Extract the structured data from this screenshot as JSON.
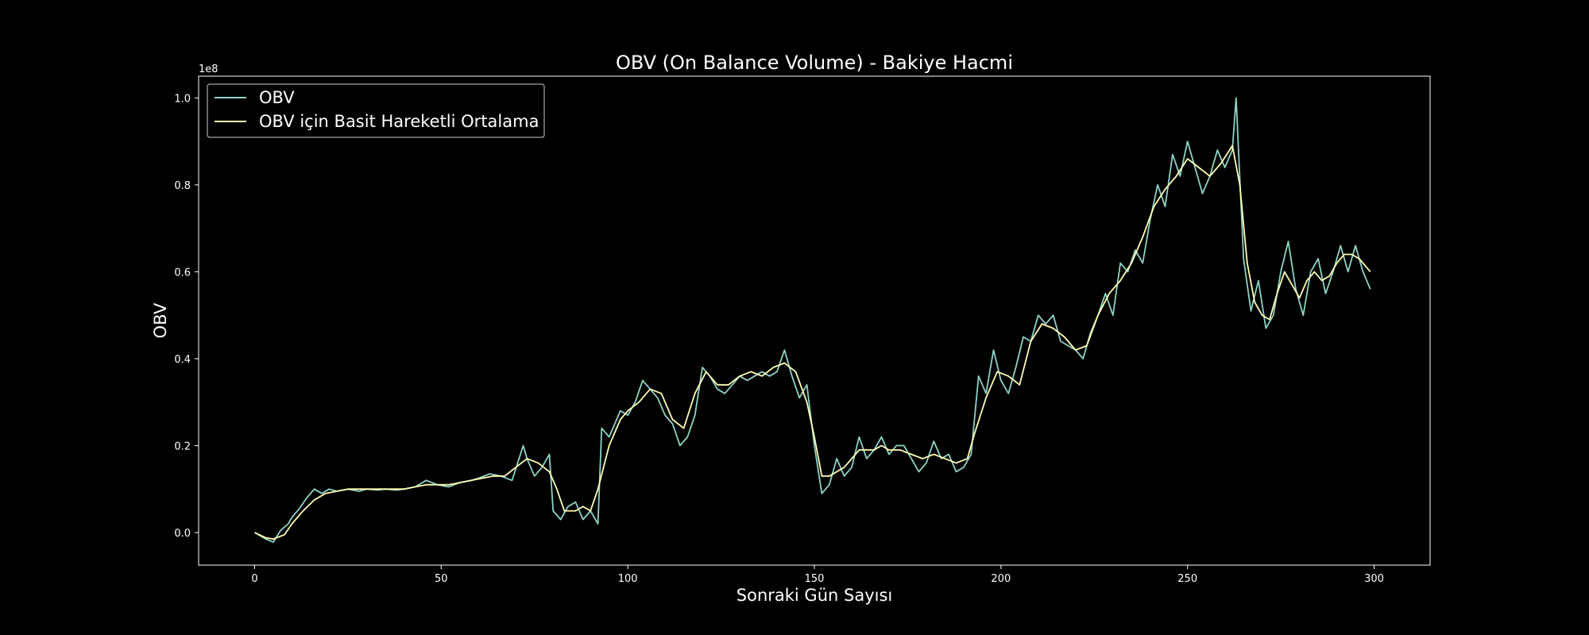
{
  "chart_data": {
    "type": "line",
    "title": "OBV (On Balance Volume) - Bakiye Hacmi",
    "xlabel": "Sonraki Gün Sayısı",
    "ylabel": "OBV",
    "y_scale_label": "1e8",
    "xlim": [
      -15,
      315
    ],
    "ylim": [
      -0.075,
      1.05
    ],
    "x_ticks": [
      0,
      50,
      100,
      150,
      200,
      250,
      300
    ],
    "x_tick_labels": [
      "0",
      "50",
      "100",
      "150",
      "200",
      "250",
      "300"
    ],
    "y_ticks": [
      0.0,
      0.2,
      0.4,
      0.6,
      0.8,
      1.0
    ],
    "y_tick_labels": [
      "0.0",
      "0.2",
      "0.4",
      "0.6",
      "0.8",
      "1.0"
    ],
    "grid": false,
    "legend_position": "top-left",
    "series": [
      {
        "name": "OBV",
        "color": "#8dd3c7",
        "x": [
          0,
          3,
          5,
          7,
          9,
          10,
          12,
          14,
          16,
          18,
          20,
          22,
          25,
          28,
          30,
          33,
          35,
          38,
          40,
          43,
          46,
          49,
          52,
          55,
          58,
          60,
          63,
          66,
          69,
          72,
          73,
          75,
          77,
          79,
          80,
          82,
          84,
          86,
          88,
          90,
          92,
          93,
          95,
          98,
          100,
          102,
          104,
          106,
          108,
          110,
          112,
          114,
          116,
          118,
          120,
          122,
          124,
          126,
          128,
          130,
          132,
          134,
          136,
          138,
          140,
          142,
          144,
          146,
          148,
          150,
          152,
          154,
          156,
          158,
          160,
          162,
          164,
          166,
          168,
          170,
          172,
          174,
          176,
          178,
          180,
          182,
          184,
          186,
          188,
          190,
          192,
          194,
          196,
          198,
          200,
          202,
          204,
          206,
          208,
          210,
          212,
          214,
          216,
          218,
          220,
          222,
          224,
          226,
          228,
          230,
          232,
          234,
          236,
          238,
          240,
          242,
          244,
          246,
          248,
          250,
          252,
          254,
          256,
          258,
          260,
          262,
          263,
          265,
          267,
          269,
          271,
          273,
          275,
          277,
          279,
          281,
          283,
          285,
          287,
          289,
          291,
          293,
          295,
          297,
          299
        ],
        "values": [
          0.0,
          -0.015,
          -0.022,
          0.005,
          0.02,
          0.035,
          0.055,
          0.08,
          0.1,
          0.09,
          0.1,
          0.095,
          0.1,
          0.095,
          0.1,
          0.098,
          0.1,
          0.098,
          0.1,
          0.105,
          0.12,
          0.11,
          0.105,
          0.115,
          0.12,
          0.125,
          0.135,
          0.13,
          0.12,
          0.2,
          0.17,
          0.13,
          0.15,
          0.18,
          0.05,
          0.03,
          0.06,
          0.07,
          0.03,
          0.05,
          0.02,
          0.24,
          0.22,
          0.28,
          0.27,
          0.3,
          0.35,
          0.33,
          0.31,
          0.27,
          0.25,
          0.2,
          0.22,
          0.27,
          0.38,
          0.36,
          0.33,
          0.32,
          0.34,
          0.36,
          0.35,
          0.36,
          0.37,
          0.36,
          0.37,
          0.42,
          0.36,
          0.31,
          0.34,
          0.2,
          0.09,
          0.11,
          0.17,
          0.13,
          0.15,
          0.22,
          0.17,
          0.19,
          0.22,
          0.18,
          0.2,
          0.2,
          0.17,
          0.14,
          0.16,
          0.21,
          0.17,
          0.18,
          0.14,
          0.15,
          0.18,
          0.36,
          0.32,
          0.42,
          0.35,
          0.32,
          0.38,
          0.45,
          0.44,
          0.5,
          0.48,
          0.5,
          0.44,
          0.43,
          0.42,
          0.4,
          0.46,
          0.5,
          0.55,
          0.5,
          0.62,
          0.6,
          0.65,
          0.62,
          0.72,
          0.8,
          0.75,
          0.87,
          0.82,
          0.9,
          0.84,
          0.78,
          0.82,
          0.88,
          0.84,
          0.88,
          1.0,
          0.63,
          0.51,
          0.58,
          0.47,
          0.5,
          0.6,
          0.67,
          0.56,
          0.5,
          0.6,
          0.63,
          0.55,
          0.6,
          0.66,
          0.6,
          0.66,
          0.6,
          0.56
        ]
      },
      {
        "name": "OBV için Basit Hareketli Ortalama",
        "color": "#ffffb3",
        "x": [
          0,
          3,
          5,
          8,
          10,
          13,
          16,
          19,
          22,
          25,
          28,
          31,
          34,
          37,
          40,
          43,
          46,
          49,
          52,
          55,
          58,
          61,
          64,
          67,
          70,
          73,
          76,
          79,
          81,
          83,
          86,
          88,
          90,
          92,
          95,
          98,
          100,
          103,
          106,
          109,
          112,
          115,
          118,
          121,
          124,
          127,
          130,
          133,
          136,
          139,
          142,
          145,
          148,
          150,
          152,
          154,
          156,
          158,
          160,
          162,
          164,
          166,
          168,
          170,
          173,
          176,
          179,
          182,
          185,
          188,
          191,
          193,
          196,
          199,
          202,
          205,
          208,
          211,
          214,
          217,
          220,
          223,
          226,
          229,
          232,
          235,
          238,
          241,
          244,
          247,
          250,
          253,
          256,
          259,
          262,
          264,
          266,
          268,
          270,
          272,
          274,
          276,
          278,
          280,
          282,
          284,
          286,
          288,
          290,
          292,
          294,
          296,
          299
        ],
        "values": [
          0.0,
          -0.012,
          -0.015,
          -0.005,
          0.02,
          0.05,
          0.075,
          0.09,
          0.095,
          0.1,
          0.1,
          0.1,
          0.1,
          0.1,
          0.1,
          0.105,
          0.11,
          0.11,
          0.11,
          0.115,
          0.12,
          0.125,
          0.13,
          0.13,
          0.15,
          0.17,
          0.16,
          0.14,
          0.1,
          0.05,
          0.05,
          0.06,
          0.05,
          0.1,
          0.2,
          0.26,
          0.28,
          0.3,
          0.33,
          0.32,
          0.26,
          0.24,
          0.32,
          0.37,
          0.34,
          0.34,
          0.36,
          0.37,
          0.36,
          0.38,
          0.39,
          0.37,
          0.3,
          0.22,
          0.13,
          0.13,
          0.14,
          0.15,
          0.17,
          0.19,
          0.19,
          0.19,
          0.2,
          0.19,
          0.19,
          0.18,
          0.17,
          0.18,
          0.17,
          0.16,
          0.17,
          0.23,
          0.31,
          0.37,
          0.36,
          0.34,
          0.44,
          0.48,
          0.47,
          0.45,
          0.42,
          0.43,
          0.5,
          0.55,
          0.58,
          0.62,
          0.68,
          0.75,
          0.79,
          0.82,
          0.86,
          0.84,
          0.82,
          0.85,
          0.89,
          0.8,
          0.62,
          0.53,
          0.5,
          0.49,
          0.55,
          0.6,
          0.57,
          0.54,
          0.58,
          0.6,
          0.58,
          0.59,
          0.62,
          0.64,
          0.64,
          0.63,
          0.6
        ]
      }
    ]
  }
}
